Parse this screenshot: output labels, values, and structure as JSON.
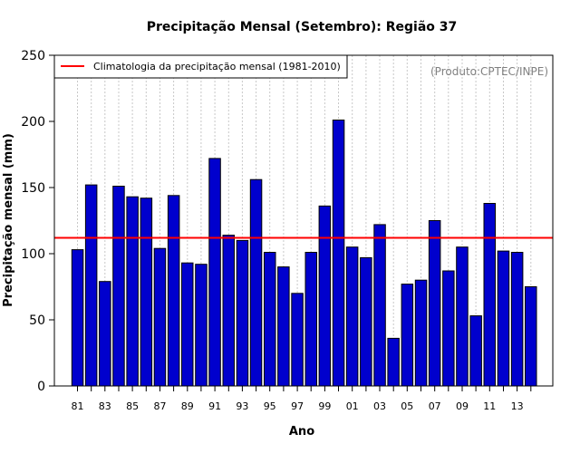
{
  "chart_data": {
    "type": "bar",
    "title": "Precipitação Mensal (Setembro): Região 37",
    "xlabel": "Ano",
    "ylabel": "Precipitação mensal (mm)",
    "ylim": [
      0,
      250
    ],
    "yticks": [
      0,
      50,
      100,
      150,
      200,
      250
    ],
    "years": [
      1981,
      1982,
      1983,
      1984,
      1985,
      1986,
      1987,
      1988,
      1989,
      1990,
      1991,
      1992,
      1993,
      1994,
      1995,
      1996,
      1997,
      1998,
      1999,
      2000,
      2001,
      2002,
      2003,
      2004,
      2005,
      2006,
      2007,
      2008,
      2009,
      2010,
      2011,
      2012,
      2013,
      2014
    ],
    "values": [
      103,
      152,
      79,
      151,
      143,
      142,
      104,
      144,
      93,
      92,
      172,
      114,
      110,
      156,
      101,
      90,
      70,
      101,
      136,
      201,
      105,
      97,
      122,
      36,
      77,
      80,
      125,
      87,
      105,
      53,
      138,
      102,
      101,
      75
    ],
    "xtick_labels": [
      "81",
      "83",
      "85",
      "87",
      "89",
      "91",
      "93",
      "95",
      "97",
      "99",
      "01",
      "03",
      "05",
      "07",
      "09",
      "11",
      "13"
    ],
    "climatology": 112,
    "legend": "Climatologia da precipitação mensal (1981-2010)",
    "legend_position": "top-left",
    "credit": "(Produto:CPTEC/INPE)",
    "grid": true,
    "colors": {
      "bar": "#0000cd",
      "climatology": "#ff0000",
      "grid": "#c8c8c8",
      "credit": "#808080"
    }
  }
}
